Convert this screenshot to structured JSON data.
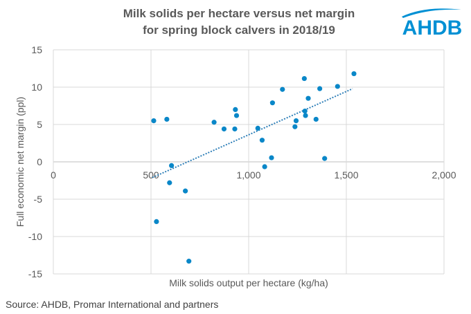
{
  "chart_data": {
    "type": "scatter",
    "title": [
      "Milk solids per hectare versus net margin",
      "for spring block calvers in 2018/19"
    ],
    "xlabel": "Milk solids output per hectare (kg/ha)",
    "ylabel": "Full economic net margin (ppl)",
    "xlim": [
      0,
      2000
    ],
    "ylim": [
      -15,
      15
    ],
    "xticks": [
      0,
      500,
      1000,
      1500,
      2000
    ],
    "xtick_labels": [
      "0",
      "500",
      "1,000",
      "1,500",
      "2,000"
    ],
    "yticks": [
      -15,
      -10,
      -5,
      0,
      5,
      10,
      15
    ],
    "ytick_labels": [
      "-15",
      "-10",
      "-5",
      "0",
      "5",
      "10",
      "15"
    ],
    "grid": true,
    "series": [
      {
        "name": "Spring block calvers",
        "color": "#0a87c8",
        "points": [
          [
            514,
            5.5
          ],
          [
            581,
            5.7
          ],
          [
            605,
            -0.5
          ],
          [
            595,
            -2.8
          ],
          [
            676,
            -3.9
          ],
          [
            528,
            -8.0
          ],
          [
            694,
            -13.3
          ],
          [
            823,
            5.3
          ],
          [
            874,
            4.4
          ],
          [
            932,
            7.0
          ],
          [
            938,
            6.2
          ],
          [
            929,
            4.4
          ],
          [
            1047,
            4.5
          ],
          [
            1069,
            2.9
          ],
          [
            1117,
            0.55
          ],
          [
            1082,
            -0.65
          ],
          [
            1539,
            11.8
          ],
          [
            1285,
            11.15
          ],
          [
            1173,
            9.7
          ],
          [
            1364,
            9.8
          ],
          [
            1455,
            10.1
          ],
          [
            1122,
            7.9
          ],
          [
            1305,
            8.5
          ],
          [
            1288,
            6.8
          ],
          [
            1291,
            6.2
          ],
          [
            1243,
            5.5
          ],
          [
            1345,
            5.7
          ],
          [
            1237,
            4.7
          ],
          [
            1389,
            0.45
          ]
        ]
      }
    ],
    "trendline": {
      "type": "linear",
      "slope": 0.0116,
      "intercept": -7.98,
      "x_range": [
        507,
        1532
      ],
      "color": "#2e7fb8"
    }
  },
  "logo": {
    "text": "AHDB",
    "color": "#0090d4"
  },
  "source": "Source: AHDB, Promar International  and partners"
}
